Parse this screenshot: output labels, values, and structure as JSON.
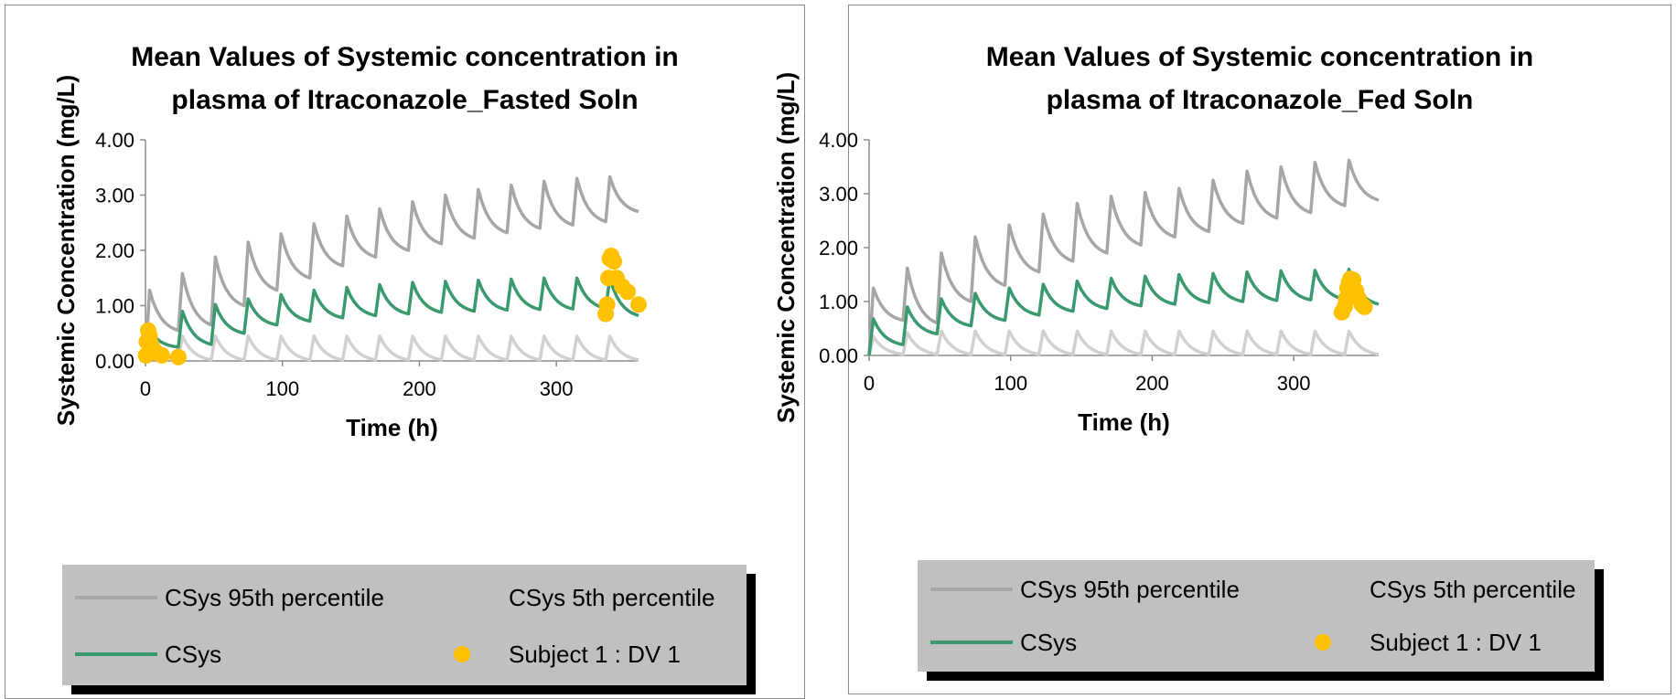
{
  "colors": {
    "p95": "#a6a6a6",
    "p5": "#d0d0d0",
    "csys": "#3a9a6e",
    "dv": "#ffc000",
    "legend_bg": "#c0c0c0"
  },
  "chart_data": [
    {
      "type": "line",
      "title_line1": "Mean Values of Systemic concentration in",
      "title_line2": "plasma of Itraconazole_Fasted Soln",
      "xlabel": "Time (h)",
      "ylabel": "Systemic Concentration (mg/L)",
      "xlim": [
        0,
        360
      ],
      "ylim": [
        0,
        4
      ],
      "x_ticks": [
        "0",
        "100",
        "200",
        "300"
      ],
      "x_tick_values": [
        0,
        100,
        200,
        300
      ],
      "y_ticks": [
        "0.00",
        "1.00",
        "2.00",
        "3.00",
        "4.00"
      ],
      "y_tick_values": [
        0,
        1,
        2,
        3,
        4
      ],
      "dose_interval_h": 24,
      "legend": {
        "p95": "CSys 95th percentile",
        "p5": "CSys 5th percentile",
        "csys": "CSys",
        "dv": "Subject 1 : DV 1"
      },
      "series": [
        {
          "key": "p95",
          "peaks": [
            1.28,
            1.58,
            1.88,
            2.15,
            2.3,
            2.48,
            2.62,
            2.75,
            2.88,
            3.0,
            3.1,
            3.18,
            3.25,
            3.3,
            3.33
          ],
          "troughs": [
            0.55,
            0.65,
            1.0,
            1.28,
            1.5,
            1.72,
            1.88,
            2.0,
            2.12,
            2.22,
            2.32,
            2.4,
            2.46,
            2.52,
            2.7
          ]
        },
        {
          "key": "p5",
          "peaks": [
            0.45,
            0.45,
            0.45,
            0.45,
            0.45,
            0.45,
            0.45,
            0.45,
            0.45,
            0.45,
            0.45,
            0.45,
            0.45,
            0.45,
            0.45
          ],
          "troughs": [
            0.02,
            0.02,
            0.02,
            0.02,
            0.02,
            0.02,
            0.02,
            0.02,
            0.02,
            0.02,
            0.02,
            0.02,
            0.02,
            0.02,
            0.02
          ]
        },
        {
          "key": "csys",
          "peaks": [
            0.55,
            0.9,
            1.02,
            1.12,
            1.2,
            1.28,
            1.33,
            1.38,
            1.42,
            1.44,
            1.46,
            1.48,
            1.5,
            1.5,
            1.5
          ],
          "troughs": [
            0.25,
            0.3,
            0.5,
            0.65,
            0.72,
            0.78,
            0.82,
            0.85,
            0.88,
            0.9,
            0.92,
            0.93,
            0.94,
            0.95,
            0.82
          ]
        }
      ],
      "dv_points": [
        {
          "x": 1,
          "y": 0.35
        },
        {
          "x": 2,
          "y": 0.55
        },
        {
          "x": 3,
          "y": 0.45
        },
        {
          "x": 4,
          "y": 0.3
        },
        {
          "x": 6,
          "y": 0.2
        },
        {
          "x": 8,
          "y": 0.15
        },
        {
          "x": 12,
          "y": 0.1
        },
        {
          "x": 0.5,
          "y": 0.1
        },
        {
          "x": 24,
          "y": 0.07
        },
        {
          "x": 336,
          "y": 0.85
        },
        {
          "x": 337,
          "y": 1.02
        },
        {
          "x": 338,
          "y": 1.5
        },
        {
          "x": 339,
          "y": 1.85
        },
        {
          "x": 340,
          "y": 1.9
        },
        {
          "x": 342,
          "y": 1.8
        },
        {
          "x": 344,
          "y": 1.5
        },
        {
          "x": 348,
          "y": 1.35
        },
        {
          "x": 352,
          "y": 1.25
        },
        {
          "x": 360,
          "y": 1.02
        }
      ]
    },
    {
      "type": "line",
      "title_line1": "Mean Values of Systemic concentration in",
      "title_line2": "plasma of Itraconazole_Fed Soln",
      "xlabel": "Time (h)",
      "ylabel": "Systemic Concentration (mg/L)",
      "xlim": [
        0,
        360
      ],
      "ylim": [
        0,
        4
      ],
      "x_ticks": [
        "0",
        "100",
        "200",
        "300"
      ],
      "x_tick_values": [
        0,
        100,
        200,
        300
      ],
      "y_ticks": [
        "0.00",
        "1.00",
        "2.00",
        "3.00",
        "4.00"
      ],
      "y_tick_values": [
        0,
        1,
        2,
        3,
        4
      ],
      "dose_interval_h": 24,
      "legend": {
        "p95": "CSys 95th percentile",
        "p5": "CSys 5th percentile",
        "csys": "CSys",
        "dv": "Subject 1 : DV 1"
      },
      "series": [
        {
          "key": "p95",
          "peaks": [
            1.25,
            1.62,
            1.9,
            2.2,
            2.42,
            2.62,
            2.82,
            2.95,
            3.02,
            3.1,
            3.25,
            3.42,
            3.5,
            3.58,
            3.62
          ],
          "troughs": [
            0.65,
            0.6,
            1.0,
            1.3,
            1.55,
            1.75,
            1.9,
            2.05,
            2.2,
            2.3,
            2.45,
            2.55,
            2.65,
            2.78,
            2.88
          ]
        },
        {
          "key": "p5",
          "peaks": [
            0.35,
            0.42,
            0.45,
            0.45,
            0.45,
            0.45,
            0.45,
            0.45,
            0.45,
            0.45,
            0.45,
            0.45,
            0.45,
            0.45,
            0.45
          ],
          "troughs": [
            0.02,
            0.02,
            0.02,
            0.02,
            0.02,
            0.02,
            0.02,
            0.02,
            0.02,
            0.02,
            0.02,
            0.02,
            0.02,
            0.02,
            0.02
          ]
        },
        {
          "key": "csys",
          "peaks": [
            0.68,
            0.9,
            1.05,
            1.15,
            1.25,
            1.32,
            1.38,
            1.43,
            1.47,
            1.5,
            1.52,
            1.55,
            1.57,
            1.58,
            1.6
          ],
          "troughs": [
            0.2,
            0.4,
            0.55,
            0.65,
            0.75,
            0.82,
            0.87,
            0.92,
            0.95,
            0.98,
            1.0,
            1.02,
            1.03,
            1.04,
            0.95
          ]
        }
      ],
      "dv_points": [
        {
          "x": 334,
          "y": 0.8
        },
        {
          "x": 336,
          "y": 0.9
        },
        {
          "x": 337,
          "y": 1.05
        },
        {
          "x": 338,
          "y": 1.25
        },
        {
          "x": 339,
          "y": 1.35
        },
        {
          "x": 340,
          "y": 1.42
        },
        {
          "x": 342,
          "y": 1.4
        },
        {
          "x": 344,
          "y": 1.2
        },
        {
          "x": 346,
          "y": 1.05
        },
        {
          "x": 348,
          "y": 0.95
        },
        {
          "x": 350,
          "y": 0.9
        }
      ]
    }
  ]
}
